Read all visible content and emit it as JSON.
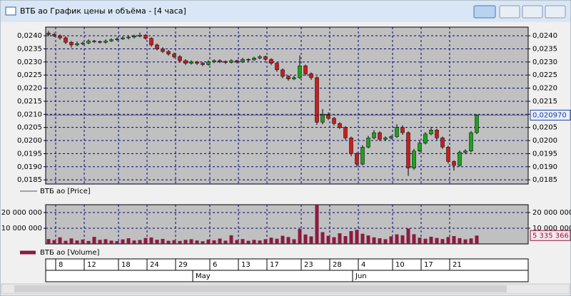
{
  "window_title": "ВТБ ао График цены и объёма - [4 часа]",
  "chart_data": [
    {
      "type": "candlestick",
      "series": [
        {
          "name": "ВТБ ао [Price]",
          "up_color": "#20a020",
          "down_color": "#c81e1e",
          "values": [
            [
              0.0241,
              0.02418,
              0.02398,
              0.02405
            ],
            [
              0.02405,
              0.02412,
              0.02395,
              0.024
            ],
            [
              0.024,
              0.02405,
              0.02385,
              0.02392
            ],
            [
              0.02392,
              0.02398,
              0.02368,
              0.02375
            ],
            [
              0.02375,
              0.0238,
              0.02355,
              0.02365
            ],
            [
              0.02365,
              0.02378,
              0.0236,
              0.0237
            ],
            [
              0.0237,
              0.02378,
              0.02364,
              0.02372
            ],
            [
              0.02372,
              0.02386,
              0.02368,
              0.0238
            ],
            [
              0.0238,
              0.02384,
              0.02372,
              0.02378
            ],
            [
              0.02378,
              0.02382,
              0.0237,
              0.02375
            ],
            [
              0.02375,
              0.02386,
              0.0237,
              0.0238
            ],
            [
              0.0238,
              0.0239,
              0.02376,
              0.02385
            ],
            [
              0.02385,
              0.02394,
              0.0238,
              0.02388
            ],
            [
              0.02388,
              0.02398,
              0.02384,
              0.02392
            ],
            [
              0.02392,
              0.024,
              0.02386,
              0.02395
            ],
            [
              0.02395,
              0.02404,
              0.0239,
              0.02398
            ],
            [
              0.02398,
              0.02412,
              0.02394,
              0.02402
            ],
            [
              0.02402,
              0.02406,
              0.02385,
              0.0239
            ],
            [
              0.0239,
              0.02394,
              0.02358,
              0.02365
            ],
            [
              0.02365,
              0.0237,
              0.02344,
              0.0235
            ],
            [
              0.0235,
              0.02356,
              0.02334,
              0.0234
            ],
            [
              0.0234,
              0.02346,
              0.02324,
              0.0233
            ],
            [
              0.0233,
              0.02336,
              0.02314,
              0.0232
            ],
            [
              0.0232,
              0.02326,
              0.02298,
              0.02305
            ],
            [
              0.02305,
              0.0231,
              0.02288,
              0.02295
            ],
            [
              0.02295,
              0.02306,
              0.0229,
              0.023
            ],
            [
              0.023,
              0.02304,
              0.02288,
              0.02295
            ],
            [
              0.02295,
              0.023,
              0.02284,
              0.0229
            ],
            [
              0.0229,
              0.02306,
              0.02286,
              0.023
            ],
            [
              0.023,
              0.0231,
              0.02296,
              0.02305
            ],
            [
              0.02305,
              0.0231,
              0.02296,
              0.02302
            ],
            [
              0.02302,
              0.02306,
              0.02292,
              0.02298
            ],
            [
              0.02298,
              0.0231,
              0.02294,
              0.02305
            ],
            [
              0.02305,
              0.02308,
              0.02294,
              0.023
            ],
            [
              0.023,
              0.02316,
              0.02296,
              0.0231
            ],
            [
              0.0231,
              0.02314,
              0.02302,
              0.02308
            ],
            [
              0.02308,
              0.0232,
              0.02304,
              0.02315
            ],
            [
              0.02315,
              0.02326,
              0.0231,
              0.0232
            ],
            [
              0.0232,
              0.02324,
              0.02304,
              0.0231
            ],
            [
              0.0231,
              0.02314,
              0.02288,
              0.02295
            ],
            [
              0.02295,
              0.023,
              0.02262,
              0.0227
            ],
            [
              0.0227,
              0.02275,
              0.02238,
              0.02245
            ],
            [
              0.02245,
              0.0225,
              0.02228,
              0.02235
            ],
            [
              0.02235,
              0.02248,
              0.0223,
              0.0224
            ],
            [
              0.0224,
              0.02325,
              0.02235,
              0.02285
            ],
            [
              0.02285,
              0.0229,
              0.02248,
              0.02255
            ],
            [
              0.02255,
              0.0226,
              0.02232,
              0.0224
            ],
            [
              0.0224,
              0.02245,
              0.0206,
              0.0207
            ],
            [
              0.0207,
              0.0212,
              0.02062,
              0.021
            ],
            [
              0.021,
              0.02108,
              0.02078,
              0.02085
            ],
            [
              0.02085,
              0.0209,
              0.02058,
              0.02065
            ],
            [
              0.02065,
              0.0207,
              0.02044,
              0.0205
            ],
            [
              0.0205,
              0.02055,
              0.02002,
              0.0201
            ],
            [
              0.0201,
              0.02015,
              0.0194,
              0.0195
            ],
            [
              0.0195,
              0.01955,
              0.01898,
              0.0191
            ],
            [
              0.0191,
              0.01982,
              0.01905,
              0.01975
            ],
            [
              0.01975,
              0.02018,
              0.0197,
              0.0201
            ],
            [
              0.0201,
              0.0204,
              0.02005,
              0.0203
            ],
            [
              0.0203,
              0.02035,
              0.01998,
              0.02005
            ],
            [
              0.02005,
              0.02016,
              0.02,
              0.0201
            ],
            [
              0.0201,
              0.0202,
              0.02005,
              0.02015
            ],
            [
              0.02015,
              0.02062,
              0.0201,
              0.0205
            ],
            [
              0.0205,
              0.02058,
              0.02022,
              0.0203
            ],
            [
              0.0203,
              0.02035,
              0.01865,
              0.01895
            ],
            [
              0.01895,
              0.01968,
              0.01888,
              0.0196
            ],
            [
              0.0196,
              0.01998,
              0.01955,
              0.0199
            ],
            [
              0.0199,
              0.02032,
              0.01985,
              0.02025
            ],
            [
              0.02025,
              0.02052,
              0.0202,
              0.0204
            ],
            [
              0.0204,
              0.02045,
              0.02002,
              0.0201
            ],
            [
              0.0201,
              0.02015,
              0.01968,
              0.01975
            ],
            [
              0.01975,
              0.0198,
              0.01912,
              0.0192
            ],
            [
              0.0192,
              0.01925,
              0.01885,
              0.01905
            ],
            [
              0.01905,
              0.01962,
              0.019,
              0.01955
            ],
            [
              0.01955,
              0.01966,
              0.01948,
              0.0196
            ],
            [
              0.0196,
              0.02036,
              0.01955,
              0.0203
            ],
            [
              0.0203,
              0.021,
              0.02025,
              0.02097
            ]
          ]
        }
      ],
      "ylim": [
        0.01834,
        0.02433
      ],
      "yticks": [
        {
          "value": 0.0185,
          "label": "0,0185"
        },
        {
          "value": 0.019,
          "label": "0,0190"
        },
        {
          "value": 0.0195,
          "label": "0,0195"
        },
        {
          "value": 0.02,
          "label": "0,0200"
        },
        {
          "value": 0.0205,
          "label": "0,0205"
        },
        {
          "value": 0.021,
          "label": "0,0210"
        },
        {
          "value": 0.0215,
          "label": "0,0215"
        },
        {
          "value": 0.022,
          "label": "0,0220"
        },
        {
          "value": 0.0225,
          "label": "0,0225"
        },
        {
          "value": 0.023,
          "label": "0,0230"
        },
        {
          "value": 0.0235,
          "label": "0,0235"
        },
        {
          "value": 0.024,
          "label": "0,0240"
        }
      ],
      "current": {
        "value": 0.02097,
        "label": "0,020970"
      },
      "grid": true
    },
    {
      "type": "bar",
      "series": [
        {
          "name": "ВТБ ао [Volume]",
          "color": "#8c1a40",
          "values": [
            3100000,
            2400000,
            4200000,
            2000000,
            3500000,
            2200000,
            2800000,
            1900000,
            4500000,
            2600000,
            3000000,
            2100000,
            1800000,
            2900000,
            3600000,
            2200000,
            2500000,
            3800000,
            4100000,
            2700000,
            3200000,
            2000000,
            2400000,
            1900000,
            2600000,
            3000000,
            2200000,
            1700000,
            2800000,
            2300000,
            3400000,
            2100000,
            5500000,
            2500000,
            3100000,
            2000000,
            2600000,
            2200000,
            3000000,
            4000000,
            3300000,
            5200000,
            4400000,
            3000000,
            9500000,
            6000000,
            4800000,
            25000000,
            7500000,
            5200000,
            4300000,
            6800000,
            5000000,
            8200000,
            9000000,
            6500000,
            5400000,
            4200000,
            3600000,
            3000000,
            4800000,
            6100000,
            5500000,
            9800000,
            6200000,
            4000000,
            3300000,
            4600000,
            3800000,
            3100000,
            4400000,
            5000000,
            3700000,
            2900000,
            3500000,
            5335366
          ]
        }
      ],
      "ylim": [
        0,
        25000000
      ],
      "yticks": [
        {
          "value": 10000000,
          "label": "10 000 000"
        },
        {
          "value": 20000000,
          "label": "20 000 000"
        }
      ],
      "current": {
        "value": 5335366,
        "label": "5 335 366"
      },
      "categories": [
        null,
        null,
        "8",
        null,
        null,
        null,
        null,
        "12",
        null,
        null,
        null,
        null,
        null,
        "18",
        null,
        null,
        null,
        null,
        "24",
        null,
        null,
        null,
        null,
        "29",
        null,
        null,
        null,
        null,
        null,
        "6",
        null,
        null,
        null,
        null,
        "13",
        null,
        null,
        null,
        null,
        "17",
        null,
        null,
        null,
        null,
        null,
        "23",
        null,
        null,
        null,
        null,
        "28",
        null,
        null,
        null,
        null,
        "4",
        null,
        null,
        null,
        null,
        null,
        "10",
        null,
        null,
        null,
        null,
        "17",
        null,
        null,
        null,
        null,
        "21",
        null,
        null,
        null,
        null
      ],
      "months": [
        null,
        null,
        null,
        null,
        null,
        null,
        null,
        null,
        null,
        null,
        null,
        null,
        null,
        null,
        null,
        null,
        null,
        null,
        null,
        null,
        null,
        null,
        null,
        null,
        null,
        null,
        "May",
        null,
        null,
        null,
        null,
        null,
        null,
        null,
        null,
        null,
        null,
        null,
        null,
        null,
        null,
        null,
        null,
        null,
        null,
        null,
        null,
        null,
        null,
        null,
        null,
        null,
        null,
        null,
        "Jun",
        null,
        null,
        null,
        null,
        null,
        null,
        null,
        null,
        null,
        null,
        null,
        null,
        null,
        null,
        null,
        null,
        null,
        null,
        null,
        null,
        null
      ],
      "grid": true
    }
  ]
}
